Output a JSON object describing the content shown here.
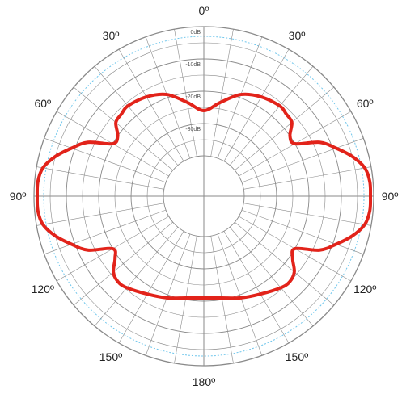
{
  "chart_data": {
    "type": "polar-line",
    "angle_labels": [
      {
        "angle": 0,
        "text": "0º"
      },
      {
        "angle": 30,
        "text": "30º"
      },
      {
        "angle": -30,
        "text": "30º"
      },
      {
        "angle": 60,
        "text": "60º"
      },
      {
        "angle": -60,
        "text": "60º"
      },
      {
        "angle": 90,
        "text": "90º"
      },
      {
        "angle": -90,
        "text": "90º"
      },
      {
        "angle": 120,
        "text": "120º"
      },
      {
        "angle": -120,
        "text": "120º"
      },
      {
        "angle": 150,
        "text": "150º"
      },
      {
        "angle": -150,
        "text": "150º"
      },
      {
        "angle": 180,
        "text": "180º"
      }
    ],
    "radial_labels": [
      {
        "db": 0,
        "text": "0dB"
      },
      {
        "db": -10,
        "text": "-10dB"
      },
      {
        "db": -20,
        "text": "-20dB"
      },
      {
        "db": -30,
        "text": "-30dB"
      }
    ],
    "radial_range": [
      -40,
      0
    ],
    "spoke_step_deg": 10,
    "reference_db": -3,
    "series": [
      {
        "color": "#e2231a",
        "angles_deg": [
          0,
          10,
          20,
          30,
          40,
          45,
          50,
          55,
          60,
          65,
          70,
          75,
          80,
          85,
          90,
          95,
          100,
          105,
          110,
          115,
          120,
          125,
          130,
          135,
          140,
          150,
          160,
          170,
          180
        ],
        "values_db": [
          -26,
          -23,
          -19,
          -17,
          -16,
          -16.5,
          -17,
          -20,
          -20,
          -13,
          -9,
          -5,
          -2,
          -1,
          -1,
          -1,
          -2,
          -5,
          -9,
          -13,
          -20,
          -19,
          -16,
          -15,
          -15.5,
          -17.5,
          -19,
          -20.5,
          -21
        ]
      }
    ]
  },
  "colors": {
    "pattern": "#e2231a",
    "grid": "#8a8a8a",
    "reference": "#6fc6ec",
    "text": "#222222"
  }
}
